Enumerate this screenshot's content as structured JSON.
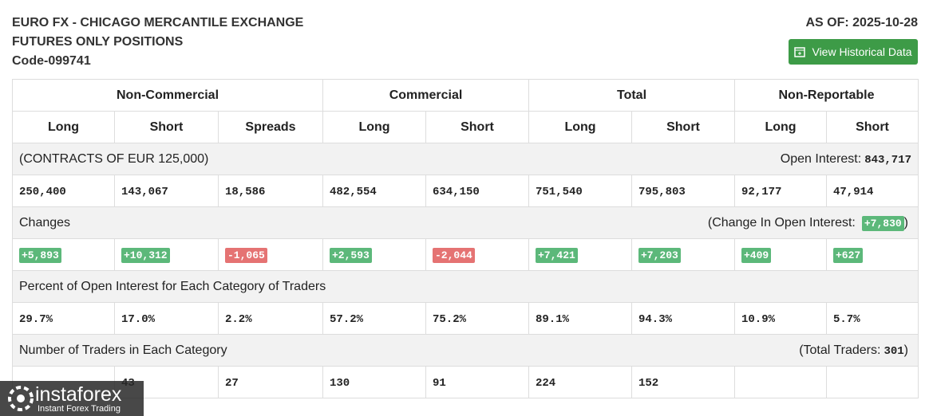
{
  "header": {
    "title_line1": "EURO FX - CHICAGO MERCANTILE EXCHANGE",
    "title_line2": "FUTURES ONLY POSITIONS",
    "code": "Code-099741",
    "as_of": "AS OF: 2025-10-28",
    "button": "View Historical Data"
  },
  "table": {
    "groups": [
      "Non-Commercial",
      "Commercial",
      "Total",
      "Non-Reportable"
    ],
    "columns": [
      "Long",
      "Short",
      "Spreads",
      "Long",
      "Short",
      "Long",
      "Short",
      "Long",
      "Short"
    ],
    "contracts_label": "(CONTRACTS OF EUR 125,000)",
    "open_interest_label": "Open Interest:",
    "open_interest": "843,717",
    "positions": [
      "250,400",
      "143,067",
      "18,586",
      "482,554",
      "634,150",
      "751,540",
      "795,803",
      "92,177",
      "47,914"
    ],
    "changes_label": "Changes",
    "change_oi_label": "(Change In Open Interest:",
    "change_oi": "+7,830",
    "change_oi_close": ")",
    "changes": [
      "+5,893",
      "+10,312",
      "-1,065",
      "+2,593",
      "-2,044",
      "+7,421",
      "+7,203",
      "+409",
      "+627"
    ],
    "percent_label": "Percent of Open Interest for Each Category of Traders",
    "percents": [
      "29.7%",
      "17.0%",
      "2.2%",
      "57.2%",
      "75.2%",
      "89.1%",
      "94.3%",
      "10.9%",
      "5.7%"
    ],
    "traders_label": "Number of Traders in Each Category",
    "total_traders_label": "(Total Traders:",
    "total_traders": "301",
    "total_traders_close": ")",
    "traders": [
      null,
      "43",
      "27",
      "130",
      "91",
      "224",
      "152",
      null,
      null
    ]
  },
  "watermark": {
    "brand": "instaforex",
    "tagline": "Instant Forex Trading"
  }
}
